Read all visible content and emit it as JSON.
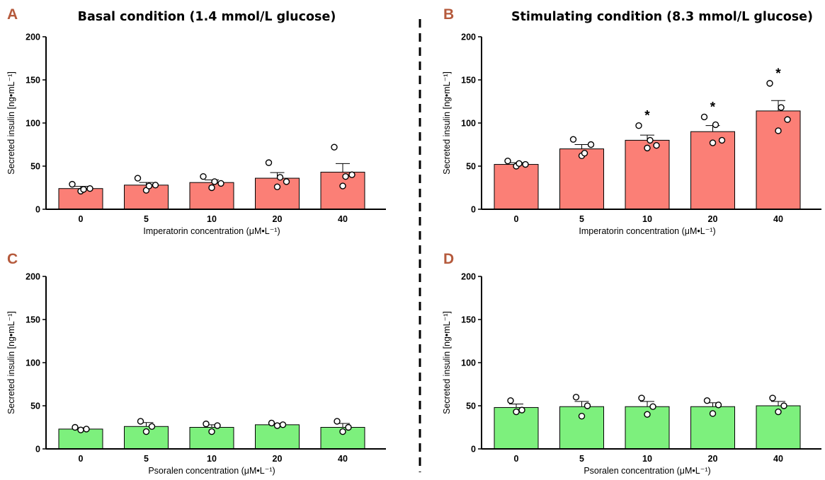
{
  "headings": {
    "left": "Basal condition (1.4 mmol/L glucose)",
    "right": "Stimulating condition (8.3 mmol/L glucose)"
  },
  "colors": {
    "panel_label": "#b55a3c",
    "imperatorin_bar": "#fb7f76",
    "psoralen_bar": "#7df07d"
  },
  "chart_data": [
    {
      "panel": "A",
      "type": "bar",
      "categories": [
        "0",
        "5",
        "10",
        "20",
        "40"
      ],
      "values": [
        24,
        28,
        31,
        36,
        43
      ],
      "errors": [
        2.5,
        3,
        3,
        6.5,
        10
      ],
      "points": [
        [
          29,
          21,
          23,
          24
        ],
        [
          36,
          22,
          27,
          28
        ],
        [
          38,
          25,
          32,
          30
        ],
        [
          54,
          26,
          37,
          32
        ],
        [
          72,
          27,
          38,
          40
        ]
      ],
      "stars": [
        "",
        "",
        "",
        "",
        ""
      ],
      "xlabel": "Imperatorin concentration (μM•L⁻¹)",
      "ylabel": "Secreted insulin [ng•mL⁻¹]",
      "ylim": [
        0,
        200
      ],
      "yticks": [
        "0",
        "50",
        "100",
        "150",
        "200"
      ],
      "grid": false
    },
    {
      "panel": "B",
      "type": "bar",
      "categories": [
        "0",
        "5",
        "10",
        "20",
        "40"
      ],
      "values": [
        52,
        70,
        80,
        90,
        114
      ],
      "errors": [
        2,
        5,
        6,
        7,
        12
      ],
      "points": [
        [
          56,
          50,
          53,
          52
        ],
        [
          81,
          62,
          65,
          75
        ],
        [
          97,
          71,
          80,
          74
        ],
        [
          107,
          77,
          98,
          80
        ],
        [
          146,
          91,
          118,
          104
        ]
      ],
      "stars": [
        "",
        "",
        "*",
        "*",
        "*"
      ],
      "xlabel": "Imperatorin concentration (μM•L⁻¹)",
      "ylabel": "Secreted insulin [ng•mL⁻¹]",
      "ylim": [
        0,
        200
      ],
      "yticks": [
        "0",
        "50",
        "100",
        "150",
        "200"
      ],
      "grid": false
    },
    {
      "panel": "C",
      "type": "bar",
      "categories": [
        "0",
        "5",
        "10",
        "20",
        "40"
      ],
      "values": [
        23,
        26,
        25,
        28,
        25
      ],
      "errors": [
        1.5,
        4.5,
        3,
        1.5,
        4.5
      ],
      "points": [
        [
          25,
          22,
          23
        ],
        [
          32,
          20,
          26
        ],
        [
          29,
          20,
          27
        ],
        [
          30,
          27,
          28
        ],
        [
          32,
          20,
          25
        ]
      ],
      "stars": [
        "",
        "",
        "",
        "",
        ""
      ],
      "xlabel": "Psoralen concentration (μM•L⁻¹)",
      "ylabel": "Secreted insulin [ng•mL⁻¹]",
      "ylim": [
        0,
        200
      ],
      "yticks": [
        "0",
        "50",
        "100",
        "150",
        "200"
      ],
      "grid": false
    },
    {
      "panel": "D",
      "type": "bar",
      "categories": [
        "0",
        "5",
        "10",
        "20",
        "40"
      ],
      "values": [
        48,
        49,
        49,
        49,
        50
      ],
      "errors": [
        4,
        6,
        6,
        4.5,
        5
      ],
      "points": [
        [
          56,
          43,
          45
        ],
        [
          60,
          38,
          50
        ],
        [
          59,
          40,
          49
        ],
        [
          56,
          41,
          51
        ],
        [
          59,
          43,
          50
        ]
      ],
      "stars": [
        "",
        "",
        "",
        "",
        ""
      ],
      "xlabel": "Psoralen concentration (μM•L⁻¹)",
      "ylabel": "Secreted insulin [ng•mL⁻¹]",
      "ylim": [
        0,
        200
      ],
      "yticks": [
        "0",
        "50",
        "100",
        "150",
        "200"
      ],
      "grid": false
    }
  ]
}
